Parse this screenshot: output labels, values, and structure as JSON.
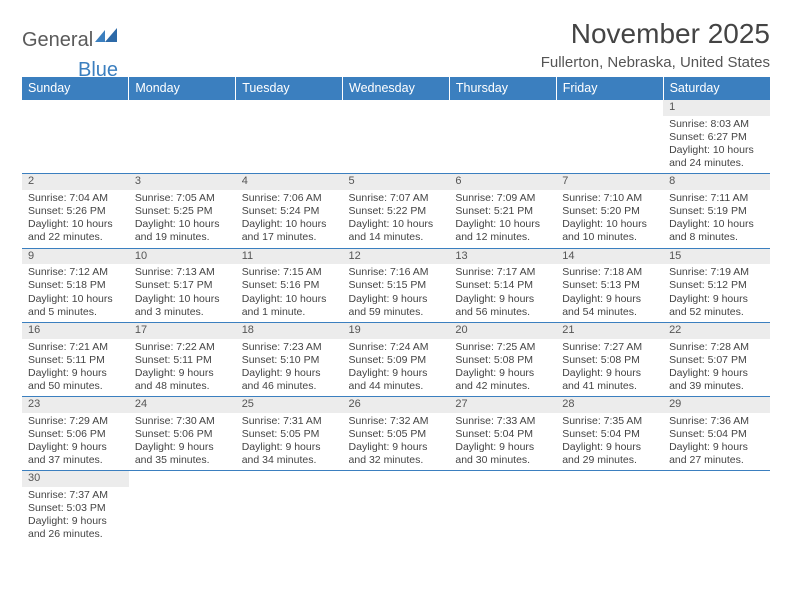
{
  "logo": {
    "text1": "General",
    "text2": "Blue"
  },
  "title": "November 2025",
  "location": "Fullerton, Nebraska, United States",
  "colors": {
    "header_bg": "#3b7fbf",
    "header_text": "#ffffff",
    "daynum_bg": "#ececec",
    "border": "#3b7fbf",
    "body_text": "#444444"
  },
  "weekdays": [
    "Sunday",
    "Monday",
    "Tuesday",
    "Wednesday",
    "Thursday",
    "Friday",
    "Saturday"
  ],
  "weeks": [
    [
      null,
      null,
      null,
      null,
      null,
      null,
      {
        "n": "1",
        "sr": "8:03 AM",
        "ss": "6:27 PM",
        "dl": "10 hours and 24 minutes."
      }
    ],
    [
      {
        "n": "2",
        "sr": "7:04 AM",
        "ss": "5:26 PM",
        "dl": "10 hours and 22 minutes."
      },
      {
        "n": "3",
        "sr": "7:05 AM",
        "ss": "5:25 PM",
        "dl": "10 hours and 19 minutes."
      },
      {
        "n": "4",
        "sr": "7:06 AM",
        "ss": "5:24 PM",
        "dl": "10 hours and 17 minutes."
      },
      {
        "n": "5",
        "sr": "7:07 AM",
        "ss": "5:22 PM",
        "dl": "10 hours and 14 minutes."
      },
      {
        "n": "6",
        "sr": "7:09 AM",
        "ss": "5:21 PM",
        "dl": "10 hours and 12 minutes."
      },
      {
        "n": "7",
        "sr": "7:10 AM",
        "ss": "5:20 PM",
        "dl": "10 hours and 10 minutes."
      },
      {
        "n": "8",
        "sr": "7:11 AM",
        "ss": "5:19 PM",
        "dl": "10 hours and 8 minutes."
      }
    ],
    [
      {
        "n": "9",
        "sr": "7:12 AM",
        "ss": "5:18 PM",
        "dl": "10 hours and 5 minutes."
      },
      {
        "n": "10",
        "sr": "7:13 AM",
        "ss": "5:17 PM",
        "dl": "10 hours and 3 minutes."
      },
      {
        "n": "11",
        "sr": "7:15 AM",
        "ss": "5:16 PM",
        "dl": "10 hours and 1 minute."
      },
      {
        "n": "12",
        "sr": "7:16 AM",
        "ss": "5:15 PM",
        "dl": "9 hours and 59 minutes."
      },
      {
        "n": "13",
        "sr": "7:17 AM",
        "ss": "5:14 PM",
        "dl": "9 hours and 56 minutes."
      },
      {
        "n": "14",
        "sr": "7:18 AM",
        "ss": "5:13 PM",
        "dl": "9 hours and 54 minutes."
      },
      {
        "n": "15",
        "sr": "7:19 AM",
        "ss": "5:12 PM",
        "dl": "9 hours and 52 minutes."
      }
    ],
    [
      {
        "n": "16",
        "sr": "7:21 AM",
        "ss": "5:11 PM",
        "dl": "9 hours and 50 minutes."
      },
      {
        "n": "17",
        "sr": "7:22 AM",
        "ss": "5:11 PM",
        "dl": "9 hours and 48 minutes."
      },
      {
        "n": "18",
        "sr": "7:23 AM",
        "ss": "5:10 PM",
        "dl": "9 hours and 46 minutes."
      },
      {
        "n": "19",
        "sr": "7:24 AM",
        "ss": "5:09 PM",
        "dl": "9 hours and 44 minutes."
      },
      {
        "n": "20",
        "sr": "7:25 AM",
        "ss": "5:08 PM",
        "dl": "9 hours and 42 minutes."
      },
      {
        "n": "21",
        "sr": "7:27 AM",
        "ss": "5:08 PM",
        "dl": "9 hours and 41 minutes."
      },
      {
        "n": "22",
        "sr": "7:28 AM",
        "ss": "5:07 PM",
        "dl": "9 hours and 39 minutes."
      }
    ],
    [
      {
        "n": "23",
        "sr": "7:29 AM",
        "ss": "5:06 PM",
        "dl": "9 hours and 37 minutes."
      },
      {
        "n": "24",
        "sr": "7:30 AM",
        "ss": "5:06 PM",
        "dl": "9 hours and 35 minutes."
      },
      {
        "n": "25",
        "sr": "7:31 AM",
        "ss": "5:05 PM",
        "dl": "9 hours and 34 minutes."
      },
      {
        "n": "26",
        "sr": "7:32 AM",
        "ss": "5:05 PM",
        "dl": "9 hours and 32 minutes."
      },
      {
        "n": "27",
        "sr": "7:33 AM",
        "ss": "5:04 PM",
        "dl": "9 hours and 30 minutes."
      },
      {
        "n": "28",
        "sr": "7:35 AM",
        "ss": "5:04 PM",
        "dl": "9 hours and 29 minutes."
      },
      {
        "n": "29",
        "sr": "7:36 AM",
        "ss": "5:04 PM",
        "dl": "9 hours and 27 minutes."
      }
    ],
    [
      {
        "n": "30",
        "sr": "7:37 AM",
        "ss": "5:03 PM",
        "dl": "9 hours and 26 minutes."
      },
      null,
      null,
      null,
      null,
      null,
      null
    ]
  ],
  "labels": {
    "sunrise": "Sunrise:",
    "sunset": "Sunset:",
    "daylight": "Daylight:"
  }
}
